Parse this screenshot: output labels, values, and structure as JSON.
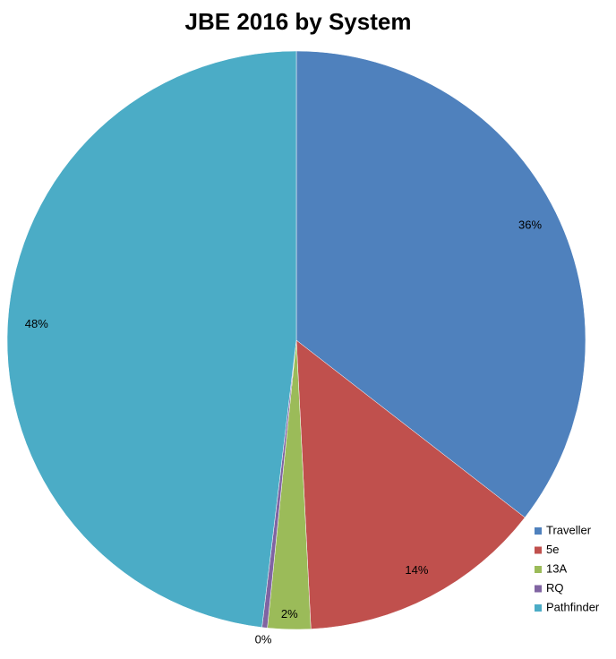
{
  "chart_data": {
    "type": "pie",
    "title": "JBE 2016 by System",
    "categories": [
      "Traveller",
      "5e",
      "13A",
      "RQ",
      "Pathfinder"
    ],
    "values": [
      35.5,
      13.7,
      2.4,
      0.3,
      48.1
    ],
    "value_labels": [
      "36%",
      "14%",
      "2%",
      "0%",
      "48%"
    ],
    "colors": [
      "#4f81bd",
      "#c0504d",
      "#9bbb59",
      "#8064a2",
      "#4bacc6"
    ],
    "legend": "right"
  }
}
